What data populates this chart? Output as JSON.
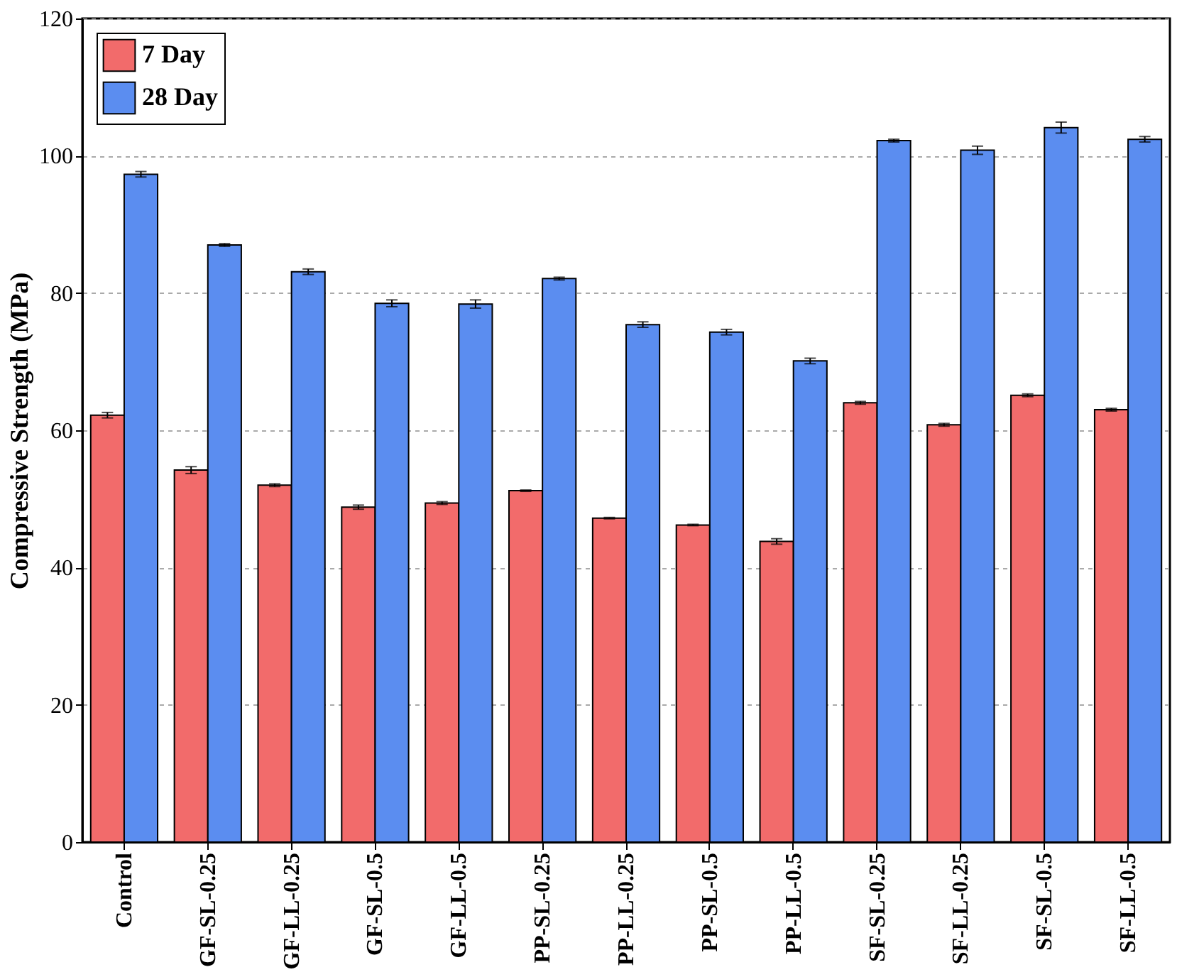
{
  "chart_data": {
    "type": "bar",
    "ylabel": "Compressive Strength (MPa)",
    "categories": [
      "Control",
      "GF-SL-0.25",
      "GF-LL-0.25",
      "GF-SL-0.5",
      "GF-LL-0.5",
      "PP-SL-0.25",
      "PP-LL-0.25",
      "PP-SL-0.5",
      "PP-LL-0.5",
      "SF-SL-0.25",
      "SF-LL-0.25",
      "SF-SL-0.5",
      "SF-LL-0.5"
    ],
    "series": [
      {
        "name": "7 Day",
        "color": "#f26b6b",
        "values": [
          62.2,
          54.2,
          52.0,
          48.8,
          49.4,
          51.2,
          47.2,
          46.2,
          43.8,
          64.0,
          60.8,
          65.1,
          63.0
        ],
        "errors": [
          0.4,
          0.5,
          0.2,
          0.3,
          0.2,
          0.1,
          0.1,
          0.1,
          0.4,
          0.2,
          0.2,
          0.2,
          0.2
        ]
      },
      {
        "name": "28 Day",
        "color": "#5b8df0",
        "values": [
          97.3,
          87.0,
          83.1,
          78.5,
          78.4,
          82.1,
          75.4,
          74.3,
          70.1,
          102.2,
          100.8,
          104.1,
          102.4
        ],
        "errors": [
          0.4,
          0.2,
          0.4,
          0.5,
          0.6,
          0.2,
          0.4,
          0.4,
          0.4,
          0.2,
          0.6,
          0.8,
          0.4
        ]
      }
    ],
    "ylim": [
      0,
      120
    ],
    "yticks": [
      0,
      20,
      40,
      60,
      80,
      100,
      120
    ],
    "grid": "y",
    "legend": "top left"
  }
}
